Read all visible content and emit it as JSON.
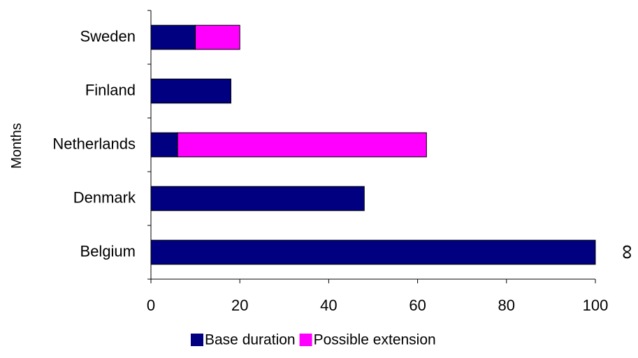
{
  "chart_data": {
    "type": "bar",
    "orientation": "horizontal",
    "stacked": true,
    "categories": [
      "Belgium",
      "Denmark",
      "Netherlands",
      "Finland",
      "Sweden"
    ],
    "series": [
      {
        "name": "Base duration",
        "values": [
          100,
          48,
          6,
          18,
          10
        ],
        "color": "#000080"
      },
      {
        "name": "Possible extension",
        "values": [
          0,
          0,
          56,
          0,
          10
        ],
        "color": "#ff00ff"
      }
    ],
    "xticks": [
      "0",
      "20",
      "40",
      "60",
      "80",
      "100"
    ],
    "xlim": [
      0,
      100
    ],
    "ylabel": "Months",
    "annotation": "∞",
    "grid": false,
    "legend": "bottom"
  }
}
